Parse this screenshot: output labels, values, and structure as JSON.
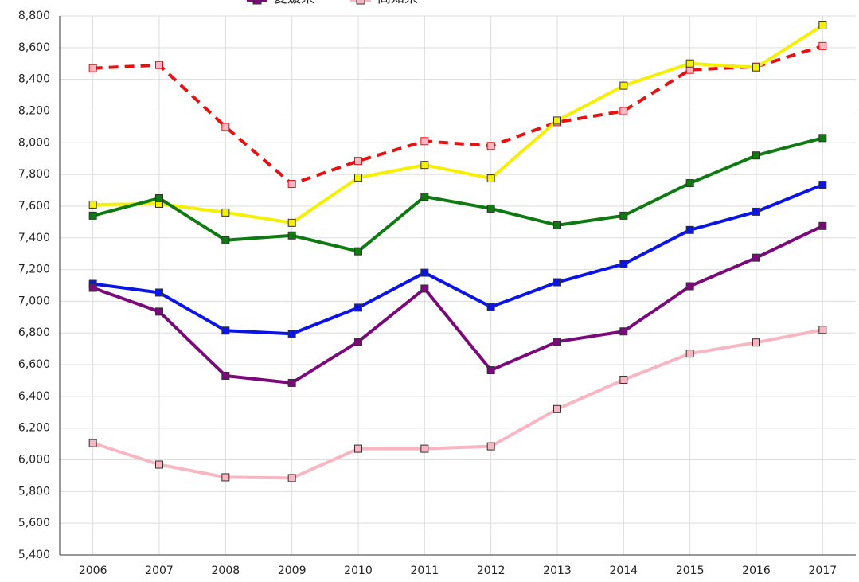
{
  "chart_data": {
    "type": "line",
    "categories": [
      "2006",
      "2007",
      "2008",
      "2009",
      "2010",
      "2011",
      "2012",
      "2013",
      "2014",
      "2015",
      "2016",
      "2017"
    ],
    "series": [
      {
        "color": "#e81010",
        "marker_fill": "#f7b6c2",
        "dash": true,
        "values": [
          8470,
          8490,
          8100,
          7740,
          7885,
          8010,
          7980,
          8130,
          8200,
          8460,
          8480,
          8610
        ]
      },
      {
        "color": "#f5f000",
        "marker_fill": "#f5f000",
        "values": [
          7610,
          7615,
          7560,
          7495,
          7780,
          7860,
          7775,
          8140,
          8360,
          8500,
          8475,
          8740
        ]
      },
      {
        "color": "#0f7a12",
        "marker_fill": "#0f7a12",
        "values": [
          7540,
          7650,
          7385,
          7415,
          7315,
          7660,
          7585,
          7480,
          7540,
          7745,
          7920,
          8030
        ]
      },
      {
        "color": "#0a14e6",
        "marker_fill": "#0a14e6",
        "values": [
          7110,
          7055,
          6815,
          6795,
          6960,
          7180,
          6965,
          7120,
          7235,
          7450,
          7565,
          7735
        ]
      },
      {
        "name": "愛媛県",
        "color": "#7a0a7a",
        "marker_fill": "#7a0a7a",
        "values": [
          7085,
          6935,
          6530,
          6485,
          6745,
          7080,
          6565,
          6745,
          6810,
          7095,
          7275,
          7475
        ]
      },
      {
        "name": "高知県",
        "color": "#f7b6c2",
        "marker_fill": "#f7b6c2",
        "values": [
          6105,
          5970,
          5890,
          5885,
          6070,
          6070,
          6085,
          6320,
          6505,
          6670,
          6740,
          6820
        ]
      }
    ],
    "ylim": [
      5400,
      8800
    ],
    "yticks": [
      {
        "value": 5400,
        "label": "5,400"
      },
      {
        "value": 5600,
        "label": "5,600"
      },
      {
        "value": 5800,
        "label": "5,800"
      },
      {
        "value": 6000,
        "label": "6,000"
      },
      {
        "value": 6200,
        "label": "6,200"
      },
      {
        "value": 6400,
        "label": "6,400"
      },
      {
        "value": 6600,
        "label": "6,600"
      },
      {
        "value": 6800,
        "label": "6,800"
      },
      {
        "value": 7000,
        "label": "7,000"
      },
      {
        "value": 7200,
        "label": "7,200"
      },
      {
        "value": 7400,
        "label": "7,400"
      },
      {
        "value": 7600,
        "label": "7,600"
      },
      {
        "value": 7800,
        "label": "7,800"
      },
      {
        "value": 8000,
        "label": "8,000"
      },
      {
        "value": 8200,
        "label": "8,200"
      },
      {
        "value": 8400,
        "label": "8,400"
      },
      {
        "value": 8600,
        "label": "8,600"
      },
      {
        "value": 8800,
        "label": "8,800"
      }
    ],
    "grid": true
  }
}
